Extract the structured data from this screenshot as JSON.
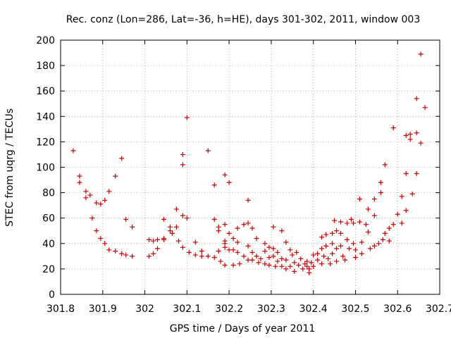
{
  "chart_data": {
    "type": "scatter",
    "title": "Rec. conz (Lon=286, Lat=-36, h=HE), days 301-302, 2011, window 003",
    "xlabel": "GPS time / Days of year 2011",
    "ylabel": "STEC from uqrg / TECUs",
    "xlim": [
      301.8,
      302.7
    ],
    "ylim": [
      0,
      200
    ],
    "x_ticks": [
      301.8,
      301.9,
      302.0,
      302.1,
      302.2,
      302.3,
      302.4,
      302.5,
      302.6,
      302.7
    ],
    "x_tick_labels": [
      "301.8",
      "301.9",
      "302",
      "302.1",
      "302.2",
      "302.3",
      "302.4",
      "302.5",
      "302.6",
      "302.7"
    ],
    "y_ticks": [
      0,
      20,
      40,
      60,
      80,
      100,
      120,
      140,
      160,
      180,
      200
    ],
    "y_tick_labels": [
      "0",
      "20",
      "40",
      "60",
      "80",
      "100",
      "120",
      "140",
      "160",
      "180",
      "200"
    ],
    "grid": true,
    "marker": "+",
    "color": "#cc0000",
    "points": [
      [
        301.83,
        113
      ],
      [
        301.845,
        93
      ],
      [
        301.845,
        88
      ],
      [
        301.86,
        81
      ],
      [
        301.86,
        76
      ],
      [
        301.87,
        78
      ],
      [
        301.875,
        60
      ],
      [
        301.885,
        72
      ],
      [
        301.885,
        50
      ],
      [
        301.895,
        71
      ],
      [
        301.895,
        44
      ],
      [
        301.905,
        74
      ],
      [
        301.905,
        40
      ],
      [
        301.915,
        81
      ],
      [
        301.915,
        35
      ],
      [
        301.93,
        93
      ],
      [
        301.93,
        34
      ],
      [
        301.945,
        107
      ],
      [
        301.945,
        32
      ],
      [
        301.955,
        59
      ],
      [
        301.955,
        31
      ],
      [
        301.97,
        53
      ],
      [
        301.97,
        30
      ],
      [
        302.01,
        43
      ],
      [
        302.01,
        30
      ],
      [
        302.02,
        42
      ],
      [
        302.02,
        32
      ],
      [
        302.03,
        43
      ],
      [
        302.03,
        36
      ],
      [
        302.045,
        44
      ],
      [
        302.045,
        43
      ],
      [
        302.045,
        59
      ],
      [
        302.06,
        53
      ],
      [
        302.06,
        50
      ],
      [
        302.065,
        48
      ],
      [
        302.075,
        67
      ],
      [
        302.075,
        53
      ],
      [
        302.08,
        42
      ],
      [
        302.09,
        110
      ],
      [
        302.09,
        102
      ],
      [
        302.09,
        62
      ],
      [
        302.09,
        37
      ],
      [
        302.1,
        139
      ],
      [
        302.1,
        60
      ],
      [
        302.105,
        33
      ],
      [
        302.12,
        41
      ],
      [
        302.12,
        31
      ],
      [
        302.135,
        34
      ],
      [
        302.135,
        30
      ],
      [
        302.15,
        113
      ],
      [
        302.15,
        30
      ],
      [
        302.165,
        86
      ],
      [
        302.165,
        59
      ],
      [
        302.165,
        29
      ],
      [
        302.175,
        53
      ],
      [
        302.175,
        50
      ],
      [
        302.175,
        34
      ],
      [
        302.18,
        26
      ],
      [
        302.19,
        94
      ],
      [
        302.19,
        55
      ],
      [
        302.19,
        42
      ],
      [
        302.19,
        40
      ],
      [
        302.19,
        37
      ],
      [
        302.19,
        23
      ],
      [
        302.2,
        88
      ],
      [
        302.2,
        48
      ],
      [
        302.2,
        35
      ],
      [
        302.21,
        44
      ],
      [
        302.21,
        35
      ],
      [
        302.21,
        23
      ],
      [
        302.22,
        52
      ],
      [
        302.22,
        41
      ],
      [
        302.22,
        33
      ],
      [
        302.225,
        24
      ],
      [
        302.235,
        55
      ],
      [
        302.235,
        30
      ],
      [
        302.245,
        74
      ],
      [
        302.245,
        56
      ],
      [
        302.245,
        38
      ],
      [
        302.245,
        27
      ],
      [
        302.255,
        52
      ],
      [
        302.255,
        33
      ],
      [
        302.255,
        27
      ],
      [
        302.265,
        44
      ],
      [
        302.265,
        30
      ],
      [
        302.27,
        25
      ],
      [
        302.275,
        28
      ],
      [
        302.285,
        40
      ],
      [
        302.285,
        34
      ],
      [
        302.285,
        24
      ],
      [
        302.295,
        37
      ],
      [
        302.295,
        29
      ],
      [
        302.295,
        23
      ],
      [
        302.305,
        53
      ],
      [
        302.305,
        36
      ],
      [
        302.305,
        30
      ],
      [
        302.31,
        22
      ],
      [
        302.315,
        33
      ],
      [
        302.315,
        26
      ],
      [
        302.325,
        50
      ],
      [
        302.325,
        28
      ],
      [
        302.325,
        22
      ],
      [
        302.335,
        41
      ],
      [
        302.335,
        27
      ],
      [
        302.335,
        20
      ],
      [
        302.345,
        35
      ],
      [
        302.345,
        22
      ],
      [
        302.35,
        31
      ],
      [
        302.355,
        25
      ],
      [
        302.355,
        18
      ],
      [
        302.36,
        33
      ],
      [
        302.365,
        23
      ],
      [
        302.37,
        28
      ],
      [
        302.375,
        20
      ],
      [
        302.38,
        24
      ],
      [
        302.385,
        26
      ],
      [
        302.385,
        22
      ],
      [
        302.39,
        20
      ],
      [
        302.39,
        17
      ],
      [
        302.395,
        25
      ],
      [
        302.4,
        31
      ],
      [
        302.4,
        22
      ],
      [
        302.41,
        27
      ],
      [
        302.41,
        32
      ],
      [
        302.42,
        45
      ],
      [
        302.42,
        36
      ],
      [
        302.42,
        24
      ],
      [
        302.425,
        30
      ],
      [
        302.43,
        47
      ],
      [
        302.43,
        38
      ],
      [
        302.435,
        28
      ],
      [
        302.44,
        24
      ],
      [
        302.445,
        48
      ],
      [
        302.445,
        40
      ],
      [
        302.445,
        32
      ],
      [
        302.45,
        58
      ],
      [
        302.455,
        50
      ],
      [
        302.455,
        36
      ],
      [
        302.455,
        26
      ],
      [
        302.465,
        57
      ],
      [
        302.465,
        48
      ],
      [
        302.465,
        38
      ],
      [
        302.47,
        30
      ],
      [
        302.475,
        27
      ],
      [
        302.48,
        56
      ],
      [
        302.48,
        43
      ],
      [
        302.485,
        36
      ],
      [
        302.49,
        59
      ],
      [
        302.495,
        56
      ],
      [
        302.495,
        40
      ],
      [
        302.5,
        35
      ],
      [
        302.5,
        29
      ],
      [
        302.51,
        75
      ],
      [
        302.51,
        57
      ],
      [
        302.515,
        41
      ],
      [
        302.515,
        32
      ],
      [
        302.525,
        55
      ],
      [
        302.53,
        67
      ],
      [
        302.53,
        49
      ],
      [
        302.535,
        36
      ],
      [
        302.545,
        75
      ],
      [
        302.545,
        62
      ],
      [
        302.545,
        38
      ],
      [
        302.555,
        40
      ],
      [
        302.56,
        88
      ],
      [
        302.56,
        80
      ],
      [
        302.565,
        43
      ],
      [
        302.57,
        102
      ],
      [
        302.57,
        48
      ],
      [
        302.58,
        52
      ],
      [
        302.58,
        42
      ],
      [
        302.59,
        131
      ],
      [
        302.59,
        55
      ],
      [
        302.6,
        63
      ],
      [
        302.61,
        77
      ],
      [
        302.61,
        56
      ],
      [
        302.62,
        125
      ],
      [
        302.62,
        95
      ],
      [
        302.62,
        66
      ],
      [
        302.63,
        126
      ],
      [
        302.63,
        122
      ],
      [
        302.635,
        79
      ],
      [
        302.645,
        154
      ],
      [
        302.645,
        127
      ],
      [
        302.645,
        95
      ],
      [
        302.655,
        189
      ],
      [
        302.655,
        119
      ],
      [
        302.665,
        147
      ]
    ]
  }
}
